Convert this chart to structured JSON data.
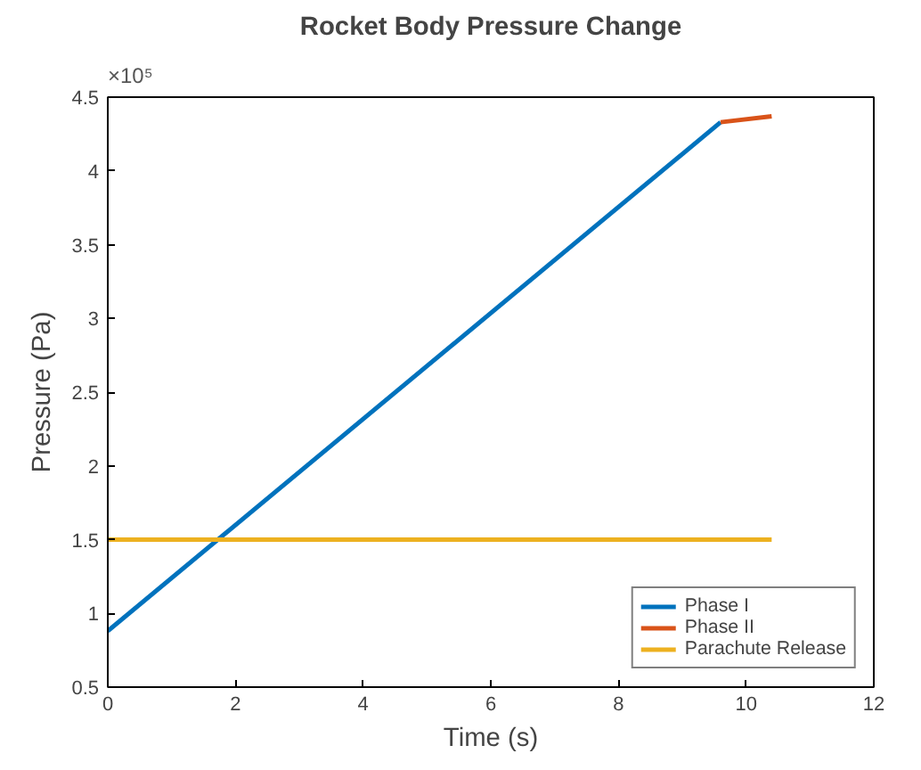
{
  "chart_data": {
    "type": "line",
    "title": "Rocket Body Pressure Change",
    "xlabel": "Time (s)",
    "ylabel": "Pressure (Pa)",
    "annotations": [
      "×10⁵"
    ],
    "series": [
      {
        "name": "Phase I",
        "color": "#0072bd",
        "x": [
          0,
          9.6
        ],
        "values": [
          0.88,
          4.33
        ]
      },
      {
        "name": "Phase II",
        "color": "#d95319",
        "x": [
          9.6,
          10.4
        ],
        "values": [
          4.33,
          4.37
        ]
      },
      {
        "name": "Parachute Release",
        "color": "#edb120",
        "x": [
          0,
          10.4
        ],
        "values": [
          1.5,
          1.5
        ]
      }
    ],
    "xlim": [
      0,
      12
    ],
    "xticks": [
      0,
      2,
      4,
      6,
      8,
      10,
      12
    ],
    "ylim": [
      0.5,
      4.5
    ],
    "yticks": [
      0.5,
      1,
      1.5,
      2,
      2.5,
      3,
      3.5,
      4,
      4.5
    ],
    "legend": "bottom right",
    "grid": false
  }
}
